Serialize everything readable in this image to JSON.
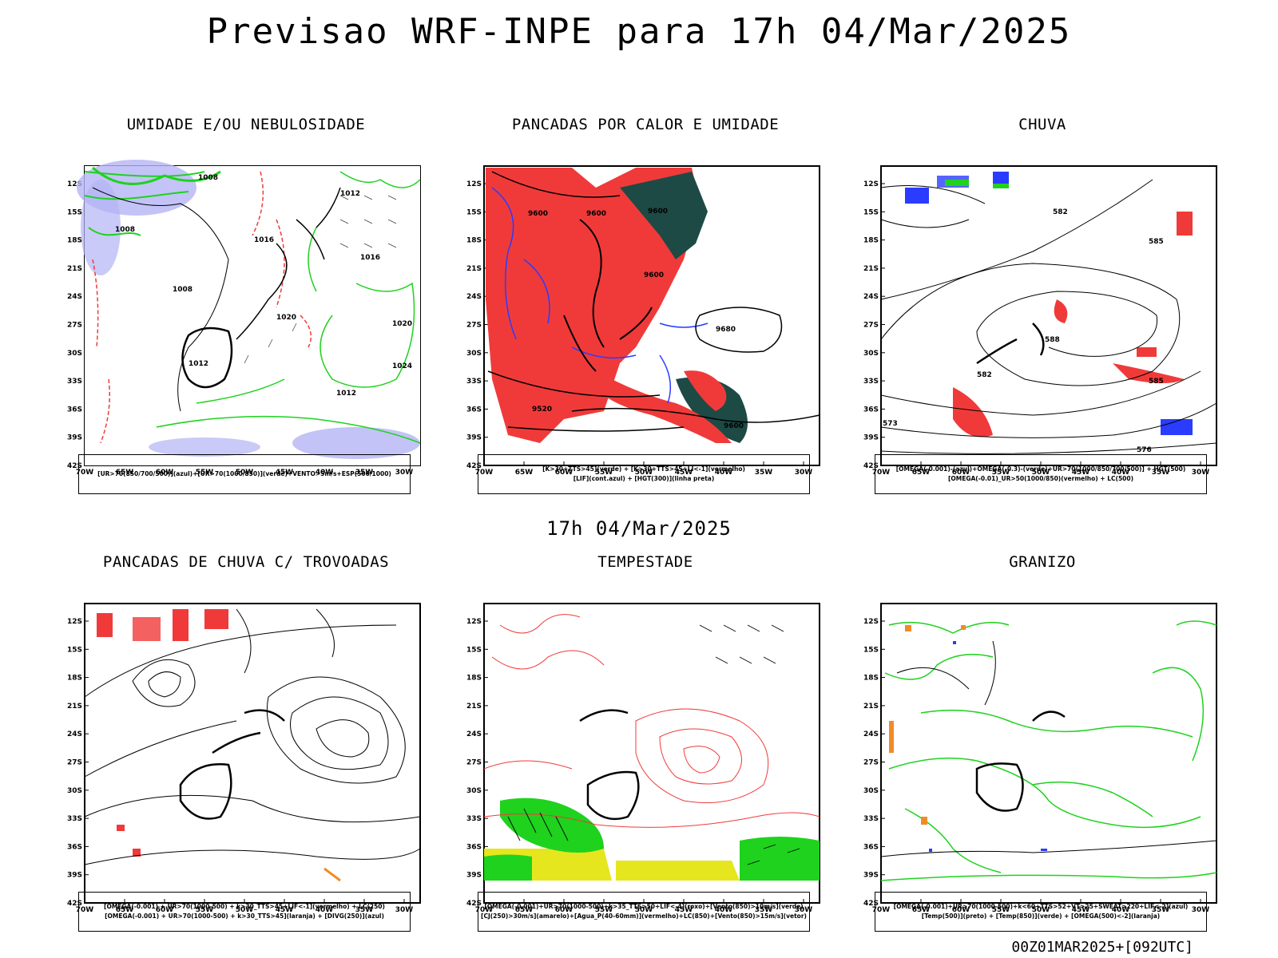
{
  "header": {
    "title": "Previsao WRF-INPE  para 17h 04/Mar/2025"
  },
  "mid_title": "17h 04/Mar/2025",
  "footer": "00Z01MAR2025+[092UTC]",
  "axes": {
    "lat_labels": [
      "12S",
      "15S",
      "18S",
      "21S",
      "24S",
      "27S",
      "30S",
      "33S",
      "36S",
      "39S",
      "42S"
    ],
    "lon_labels": [
      "70W",
      "65W",
      "60W",
      "55W",
      "50W",
      "45W",
      "40W",
      "35W",
      "30W"
    ]
  },
  "colors": {
    "red": "#f03a3a",
    "green": "#1ed21e",
    "blue": "#2a3cff",
    "lavender": "#b4b4f5",
    "darkteal": "#1e4a46",
    "yellow": "#e6e61e",
    "orange": "#f08c28"
  },
  "panels": [
    {
      "title": "UMIDADE E/OU NEBULOSIDADE",
      "legend": [
        "[UR>70(850/700/500)](azul)+[UR>70(1000/850)](verde)+VENTO>5m/s+ESP(500/1000)"
      ]
    },
    {
      "title": "PANCADAS POR CALOR E UMIDADE",
      "legend": [
        "[K>30+TTS>45](verde) + [K>30+TTS>45+LI<-1](vermelho)",
        "[LIF](cont.azul) + [HGT(300)](linha preta)"
      ]
    },
    {
      "title": "CHUVA",
      "legend": [
        "[OMEGA(-0.001)-(azul)+OMEGA(-0.3)-(verde)+UR>70(1000/850/700/500)] + HGT(500)",
        "[OMEGA(-0.01)_UR>50(1000/850)(vermelho) + LC(500)"
      ]
    },
    {
      "title": "PANCADAS DE CHUVA C/ TROVOADAS",
      "legend": [
        "[OMEGA(-0.001) + UR>70(1000-500) + k>30_TTS>45+LIF<-1](vermelho) + LC(250)",
        "[OMEGA(-0.001) + UR>70(1000-500) + k>30_TTS>45](laranja) + [DIVG(250)](azul)"
      ]
    },
    {
      "title": "TEMPESTADE",
      "legend": [
        "[OMEGA(-0.001)+UR>70(1000-500)+k>35_TTS>50+LIF<-4](roxo)+[Vento(850)>10m/s](verde)",
        "[CJ(250)>30m/s](amarelo)+[Agua_P(40-60mm)](vermelho)+LC(850)+[Vento(850)>15m/s](vetor)"
      ]
    },
    {
      "title": "GRANIZO",
      "legend": [
        "[OMEGA(-0.001)+UR>70(1000-500)+k<60+TTS>52+VT>25+SWEAT>220+LIF<-2](azul)",
        "[Temp(500)](preto) + [Temp(850)](verde) + [OMEGA(500)<-2](laranja)"
      ]
    }
  ],
  "contour_labels": {
    "p1": [
      "1008",
      "1008",
      "1012",
      "1016",
      "1016",
      "1008",
      "1012",
      "1020",
      "1020",
      "1024",
      "1012"
    ],
    "p2": [
      "9600",
      "9600",
      "9600",
      "9600",
      "9680",
      "9520",
      "9600"
    ],
    "p3": [
      "582",
      "585",
      "588",
      "582",
      "585",
      "573",
      "576"
    ]
  }
}
